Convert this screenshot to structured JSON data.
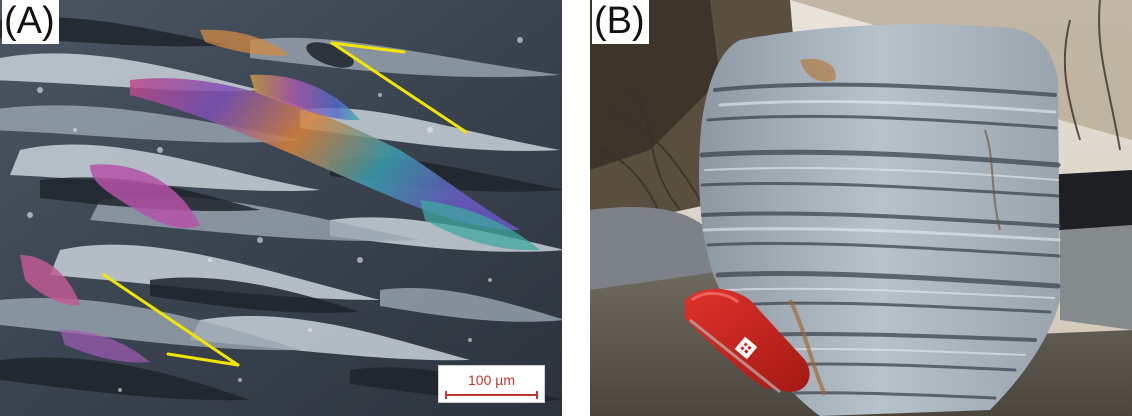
{
  "panel_a": {
    "label": "(A)",
    "scale_bar_text": "100 µm",
    "arrow_color": "#f2e600",
    "scale_color": "#c0392b"
  },
  "panel_b": {
    "label": "(B)"
  }
}
